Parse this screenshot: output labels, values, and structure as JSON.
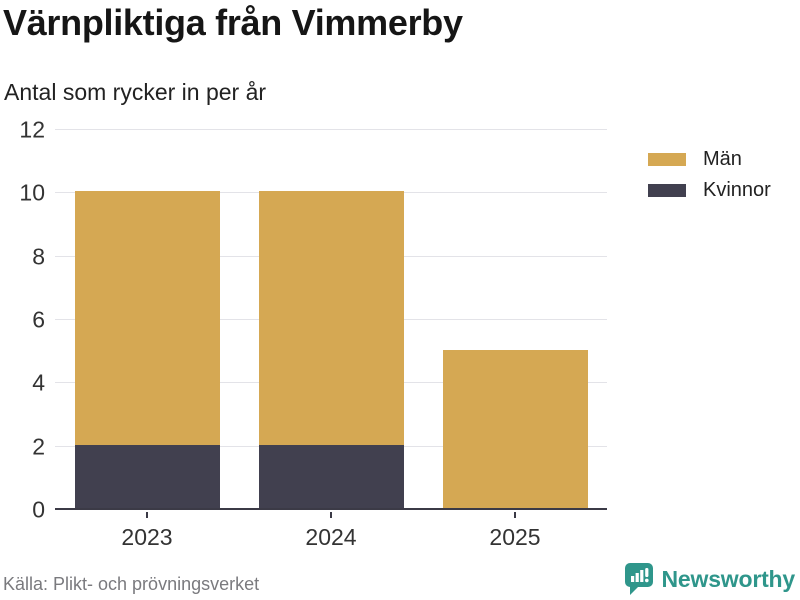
{
  "header": {
    "title": "Värnpliktiga från Vimmerby",
    "subtitle": "Antal som rycker in per år"
  },
  "chart_data": {
    "type": "bar",
    "stacked": true,
    "title": "Värnpliktiga från Vimmerby",
    "subtitle": "Antal som rycker in per år",
    "categories": [
      "2023",
      "2024",
      "2025"
    ],
    "series": [
      {
        "name": "Män",
        "color": "#d5a853",
        "values": [
          8,
          8,
          5
        ]
      },
      {
        "name": "Kvinnor",
        "color": "#41404f",
        "values": [
          2,
          2,
          0
        ]
      }
    ],
    "stack_totals": [
      10,
      10,
      5
    ],
    "xlabel": "",
    "ylabel": "",
    "ylim": [
      0,
      12
    ],
    "yticks": [
      0,
      2,
      4,
      6,
      8,
      10,
      12
    ],
    "grid": true,
    "legend_position": "right"
  },
  "footer": {
    "source": "Källa: Plikt- och prövningsverket",
    "brand": "Newsworthy"
  },
  "colors": {
    "men": "#d5a853",
    "women": "#41404f",
    "axis": "#3b3a46",
    "gridline": "#e3e3e8",
    "brand_teal": "#2f968b",
    "source_gray": "#7a7a7e"
  }
}
